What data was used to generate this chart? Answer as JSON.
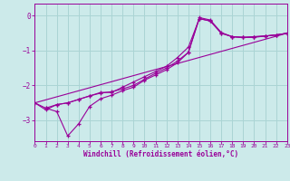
{
  "xlabel": "Windchill (Refroidissement éolien,°C)",
  "background_color": "#cceaea",
  "grid_color": "#aad4d4",
  "line_color": "#990099",
  "xlim": [
    0,
    23
  ],
  "ylim": [
    -3.6,
    0.35
  ],
  "yticks": [
    0,
    -1,
    -2,
    -3
  ],
  "xticks": [
    0,
    1,
    2,
    3,
    4,
    5,
    6,
    7,
    8,
    9,
    10,
    11,
    12,
    13,
    14,
    15,
    16,
    17,
    18,
    19,
    20,
    21,
    22,
    23
  ],
  "series1_x": [
    0,
    1,
    2,
    3,
    4,
    5,
    6,
    7,
    8,
    9,
    10,
    11,
    12,
    13,
    14,
    15,
    16,
    17,
    18,
    19,
    20,
    21,
    22,
    23
  ],
  "series1_y": [
    -2.5,
    -2.7,
    -2.55,
    -2.5,
    -2.4,
    -2.3,
    -2.2,
    -2.2,
    -2.05,
    -1.9,
    -1.75,
    -1.6,
    -1.45,
    -1.2,
    -0.9,
    -0.08,
    -0.15,
    -0.5,
    -0.6,
    -0.62,
    -0.6,
    -0.58,
    -0.55,
    -0.5
  ],
  "series2_x": [
    1,
    2,
    3,
    4,
    5,
    6,
    7,
    8,
    9,
    10,
    11,
    12,
    13,
    14,
    15,
    16,
    17,
    18,
    19,
    20,
    21,
    22,
    23
  ],
  "series2_y": [
    -2.65,
    -2.55,
    -2.5,
    -2.4,
    -2.3,
    -2.22,
    -2.18,
    -2.1,
    -2.0,
    -1.82,
    -1.65,
    -1.5,
    -1.3,
    -1.05,
    -0.05,
    -0.12,
    -0.48,
    -0.6,
    -0.62,
    -0.62,
    -0.58,
    -0.55,
    -0.5
  ],
  "series3_x": [
    0,
    1,
    2,
    3,
    4,
    5,
    6,
    7,
    8,
    9,
    10,
    11,
    12,
    13,
    14,
    15,
    16,
    17,
    18,
    19,
    20,
    21,
    22,
    23
  ],
  "series3_y": [
    -2.5,
    -2.65,
    -2.75,
    -3.45,
    -3.1,
    -2.6,
    -2.38,
    -2.28,
    -2.15,
    -2.05,
    -1.85,
    -1.7,
    -1.55,
    -1.35,
    -1.05,
    -0.08,
    -0.15,
    -0.5,
    -0.6,
    -0.62,
    -0.6,
    -0.58,
    -0.55,
    -0.5
  ],
  "series4_x": [
    0,
    23
  ],
  "series4_y": [
    -2.5,
    -0.5
  ]
}
